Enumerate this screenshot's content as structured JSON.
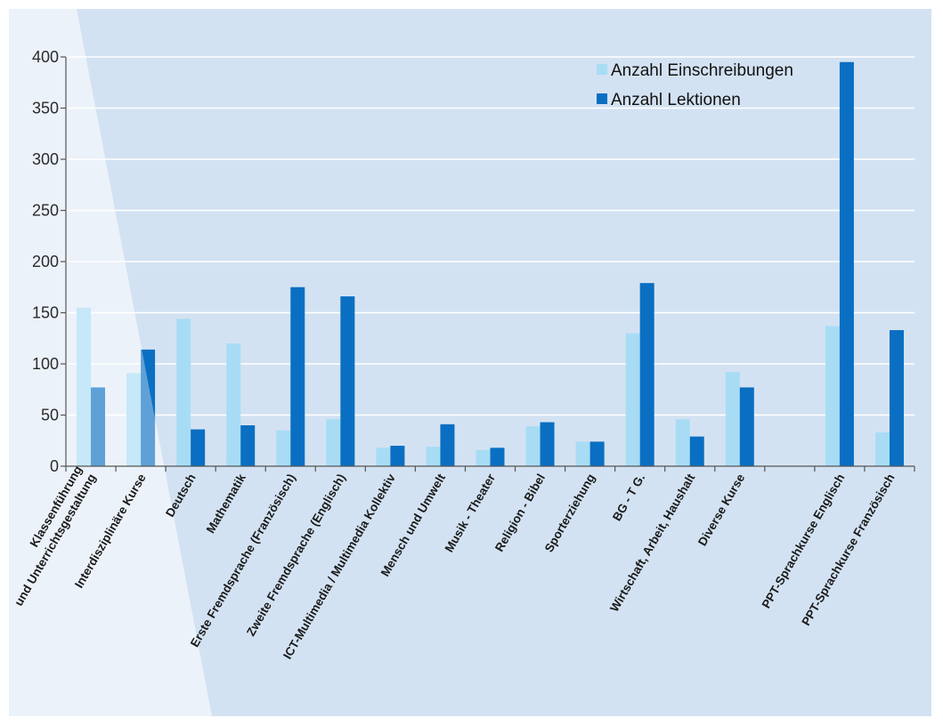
{
  "chart_data": {
    "type": "bar",
    "categories": [
      "Klassenführung und Unterrichtsgestaltung",
      "Interdisziplinäre Kurse",
      "Deutsch",
      "Mathematik",
      "Erste Fremdsprache (Französisch)",
      "Zweite Fremdsprache (Englisch)",
      "ICT-Multimedia / Multimedia Kollektiv",
      "Mensch und Umwelt",
      "Musik - Theater",
      "Religion - Bibel",
      "Sporterziehung",
      "BG - T G.",
      "Wirtschaft, Arbeit, Haushalt",
      "Diverse Kurse",
      "",
      "PPT-Sprachkurse Englisch",
      "PPT-Sprachkurse Französisch"
    ],
    "category_lines": [
      [
        "Klassenführung",
        "und Unterrichtsgestaltung"
      ],
      [
        "Interdisziplinäre Kurse"
      ],
      [
        "Deutsch"
      ],
      [
        "Mathematik"
      ],
      [
        "Erste Fremdsprache (Französisch)"
      ],
      [
        "Zweite Fremdsprache (Englisch)"
      ],
      [
        "ICT-Multimedia / Multimedia Kollektiv"
      ],
      [
        "Mensch und Umwelt"
      ],
      [
        "Musik - Theater"
      ],
      [
        "Religion - Bibel"
      ],
      [
        "Sporterziehung"
      ],
      [
        "BG - T G."
      ],
      [
        "Wirtschaft, Arbeit, Haushalt"
      ],
      [
        "Diverse Kurse"
      ],
      [],
      [
        "PPT-Sprachkurse Englisch"
      ],
      [
        "PPT-Sprachkurse Französisch"
      ]
    ],
    "series": [
      {
        "name": "Anzahl Einschreibungen",
        "color": "#a8dcf5",
        "values": [
          155,
          91,
          144,
          120,
          35,
          46,
          18,
          19,
          16,
          39,
          24,
          130,
          46,
          92,
          0,
          137,
          33
        ]
      },
      {
        "name": "Anzahl Lektionen",
        "color": "#0a6fc2",
        "values": [
          77,
          114,
          36,
          40,
          175,
          166,
          20,
          41,
          18,
          43,
          24,
          179,
          29,
          77,
          0,
          395,
          133
        ]
      }
    ],
    "y_ticks": [
      "0",
      "50",
      "100",
      "150",
      "200",
      "250",
      "300",
      "350",
      "400"
    ],
    "ylim": [
      0,
      400
    ],
    "grid": true,
    "legend_position": "top-right",
    "title": "",
    "xlabel": "",
    "ylabel": "",
    "background_colors": {
      "panel": "#d3e2f2",
      "panel_light": "#e2ecf7",
      "gridline": "#ffffff",
      "axis": "#555555"
    }
  }
}
